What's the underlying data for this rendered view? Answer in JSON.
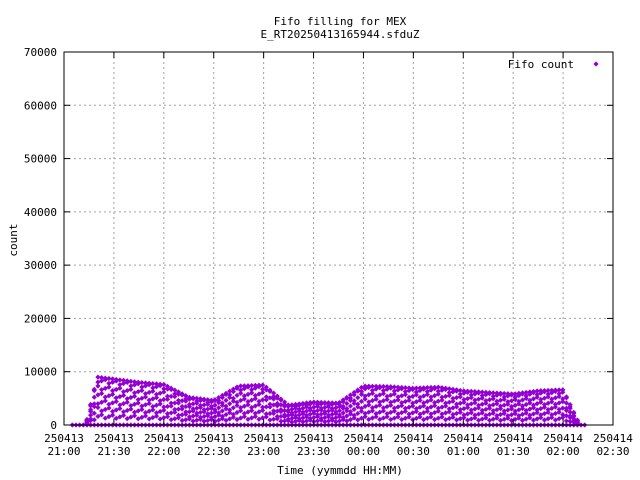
{
  "chart_data": {
    "type": "scatter",
    "title": "Fifo filling for MEX",
    "subtitle": "E_RT20250413165944.sfduZ",
    "xlabel": "Time (yymmdd HH:MM)",
    "ylabel": "count",
    "xlim": [
      "250413 21:00",
      "250414 02:30"
    ],
    "ylim": [
      0,
      70000
    ],
    "x_ticks": [
      {
        "date": "250413",
        "time": "21:00"
      },
      {
        "date": "250413",
        "time": "21:30"
      },
      {
        "date": "250413",
        "time": "22:00"
      },
      {
        "date": "250413",
        "time": "22:30"
      },
      {
        "date": "250413",
        "time": "23:00"
      },
      {
        "date": "250413",
        "time": "23:30"
      },
      {
        "date": "250414",
        "time": "00:00"
      },
      {
        "date": "250414",
        "time": "00:30"
      },
      {
        "date": "250414",
        "time": "01:00"
      },
      {
        "date": "250414",
        "time": "01:30"
      },
      {
        "date": "250414",
        "time": "02:00"
      },
      {
        "date": "250414",
        "time": "02:30"
      }
    ],
    "y_ticks": [
      0,
      10000,
      20000,
      30000,
      40000,
      50000,
      60000,
      70000
    ],
    "grid": true,
    "legend_position": "top-right",
    "series": [
      {
        "name": "Fifo count",
        "color": "#9400d3",
        "marker": "diamond",
        "envelope": {
          "x": [
            "250413 21:10",
            "250413 21:13",
            "250413 21:20",
            "250413 21:30",
            "250413 21:45",
            "250413 22:00",
            "250413 22:15",
            "250413 22:30",
            "250413 22:45",
            "250413 23:00",
            "250413 23:15",
            "250413 23:30",
            "250413 23:45",
            "250414 00:00",
            "250414 00:15",
            "250414 00:30",
            "250414 00:45",
            "250414 01:00",
            "250414 01:15",
            "250414 01:30",
            "250414 01:45",
            "250414 02:00",
            "250414 02:10"
          ],
          "y": [
            0,
            0,
            9000,
            8600,
            8000,
            7600,
            5200,
            4600,
            7300,
            7500,
            3700,
            4300,
            4100,
            7300,
            7200,
            6900,
            7100,
            6400,
            6100,
            5800,
            6400,
            6600,
            0
          ]
        }
      }
    ]
  }
}
